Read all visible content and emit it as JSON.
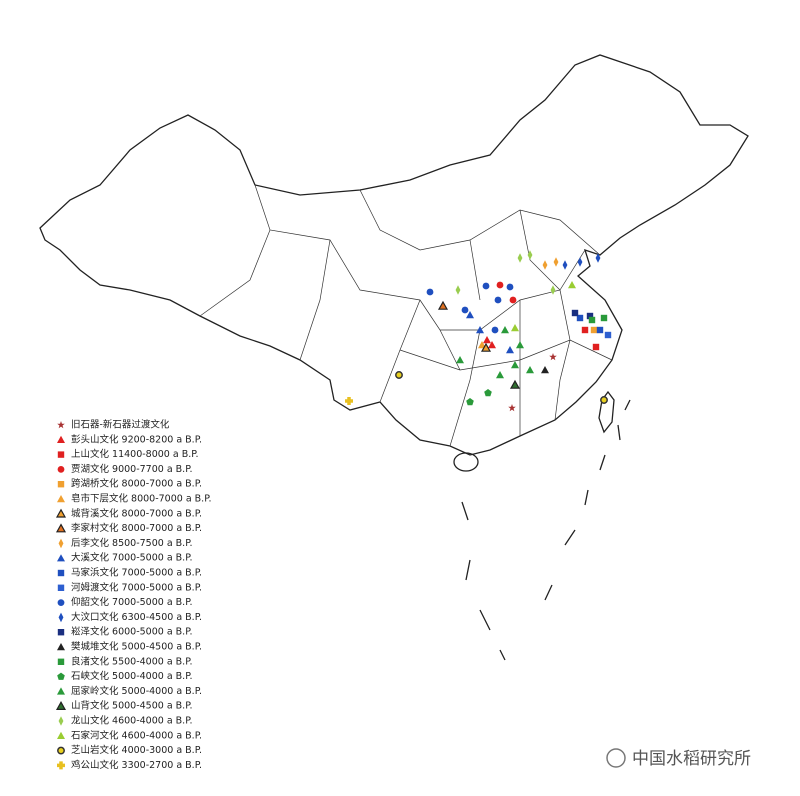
{
  "legend": {
    "items": [
      {
        "label": "旧石器-新石器过渡文化",
        "marker": "star",
        "color": "#a83232"
      },
      {
        "label": "彭头山文化 9200-8200 a B.P.",
        "marker": "triangle",
        "color": "#e02020"
      },
      {
        "label": "上山文化 11400-8000 a B.P.",
        "marker": "square",
        "color": "#e02020"
      },
      {
        "label": "贾湖文化 9000-7700 a B.P.",
        "marker": "circle",
        "color": "#e02020"
      },
      {
        "label": "跨湖桥文化 8000-7000 a B.P.",
        "marker": "square",
        "color": "#f0a030"
      },
      {
        "label": "皂市下层文化 8000-7000 a B.P.",
        "marker": "triangle",
        "color": "#f0a030"
      },
      {
        "label": "城背溪文化 8000-7000 a B.P.",
        "marker": "triangle-outlined",
        "color": "#f0a030"
      },
      {
        "label": "李家村文化 8000-7000 a B.P.",
        "marker": "triangle-outlined",
        "color": "#e07020"
      },
      {
        "label": "后李文化 8500-7500 a B.P.",
        "marker": "diamond",
        "color": "#f0a030"
      },
      {
        "label": "大溪文化 7000-5000 a B.P.",
        "marker": "triangle",
        "color": "#1f4fbf"
      },
      {
        "label": "马家浜文化 7000-5000 a B.P.",
        "marker": "square",
        "color": "#1f4fbf"
      },
      {
        "label": "河姆渡文化 7000-5000 a B.P.",
        "marker": "square",
        "color": "#2d5fd0"
      },
      {
        "label": "仰韶文化 7000-5000 a B.P.",
        "marker": "circle",
        "color": "#1f4fbf"
      },
      {
        "label": "大汶口文化 6300-4500 a B.P.",
        "marker": "diamond",
        "color": "#1f4fbf"
      },
      {
        "label": "崧泽文化 6000-5000 a B.P.",
        "marker": "square",
        "color": "#1a2f80"
      },
      {
        "label": "樊城堆文化 5000-4500 a B.P.",
        "marker": "triangle",
        "color": "#222222"
      },
      {
        "label": "良渚文化 5500-4000 a B.P.",
        "marker": "square",
        "color": "#2a9a3a"
      },
      {
        "label": "石峡文化 5000-4000 a B.P.",
        "marker": "pentagon",
        "color": "#2a9a3a"
      },
      {
        "label": "屈家岭文化 5000-4000 a B.P.",
        "marker": "triangle",
        "color": "#2a9a3a"
      },
      {
        "label": "山背文化 5000-4500 a B.P.",
        "marker": "triangle-outlined",
        "color": "#2f6f2f"
      },
      {
        "label": "龙山文化 4600-4000 a B.P.",
        "marker": "diamond",
        "color": "#9acd50"
      },
      {
        "label": "石家河文化 4600-4000 a B.P.",
        "marker": "triangle",
        "color": "#9acd32"
      },
      {
        "label": "芝山岩文化 4000-3000 a B.P.",
        "marker": "ring",
        "color": "#e8d020"
      },
      {
        "label": "鸡公山文化 3300-2700 a B.P.",
        "marker": "cross",
        "color": "#e8c020"
      }
    ]
  },
  "watermark": "中国水稻研究所"
}
